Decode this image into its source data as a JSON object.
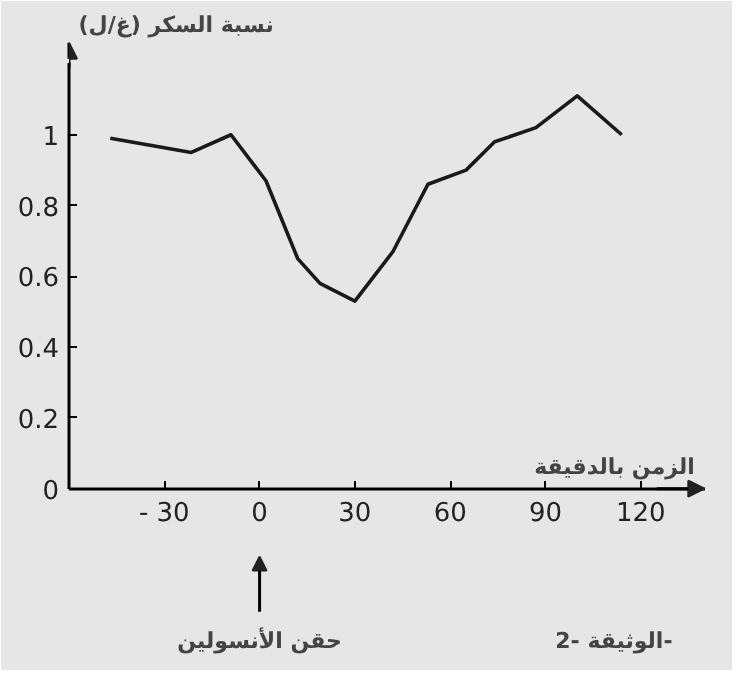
{
  "chart_data": {
    "type": "line",
    "ylabel": "نسبة السكر (غ/ل)",
    "xlabel": "الزمن بالدقيقة",
    "x": [
      -47,
      -21.5,
      -9,
      2,
      12,
      19,
      30,
      42,
      53,
      65,
      74,
      87,
      100,
      114
    ],
    "series": [
      {
        "color": "#1a1a1a",
        "values": [
          0.99,
          0.95,
          1.0,
          0.87,
          0.65,
          0.58,
          0.53,
          0.67,
          0.86,
          0.9,
          0.98,
          1.02,
          1.11,
          1.0
        ]
      }
    ],
    "xlim": [
      -60,
      140
    ],
    "ylim": [
      0,
      1.2
    ],
    "xticks": [
      {
        "value": -30,
        "label": "- 30"
      },
      0,
      30,
      60,
      90,
      120
    ],
    "yticks": [
      0,
      0.2,
      0.4,
      0.6,
      0.8,
      1
    ],
    "annotations": [
      "حقن الأنسولين",
      "الوثيقة -2-"
    ],
    "marker": "none",
    "line_style": "solid"
  }
}
